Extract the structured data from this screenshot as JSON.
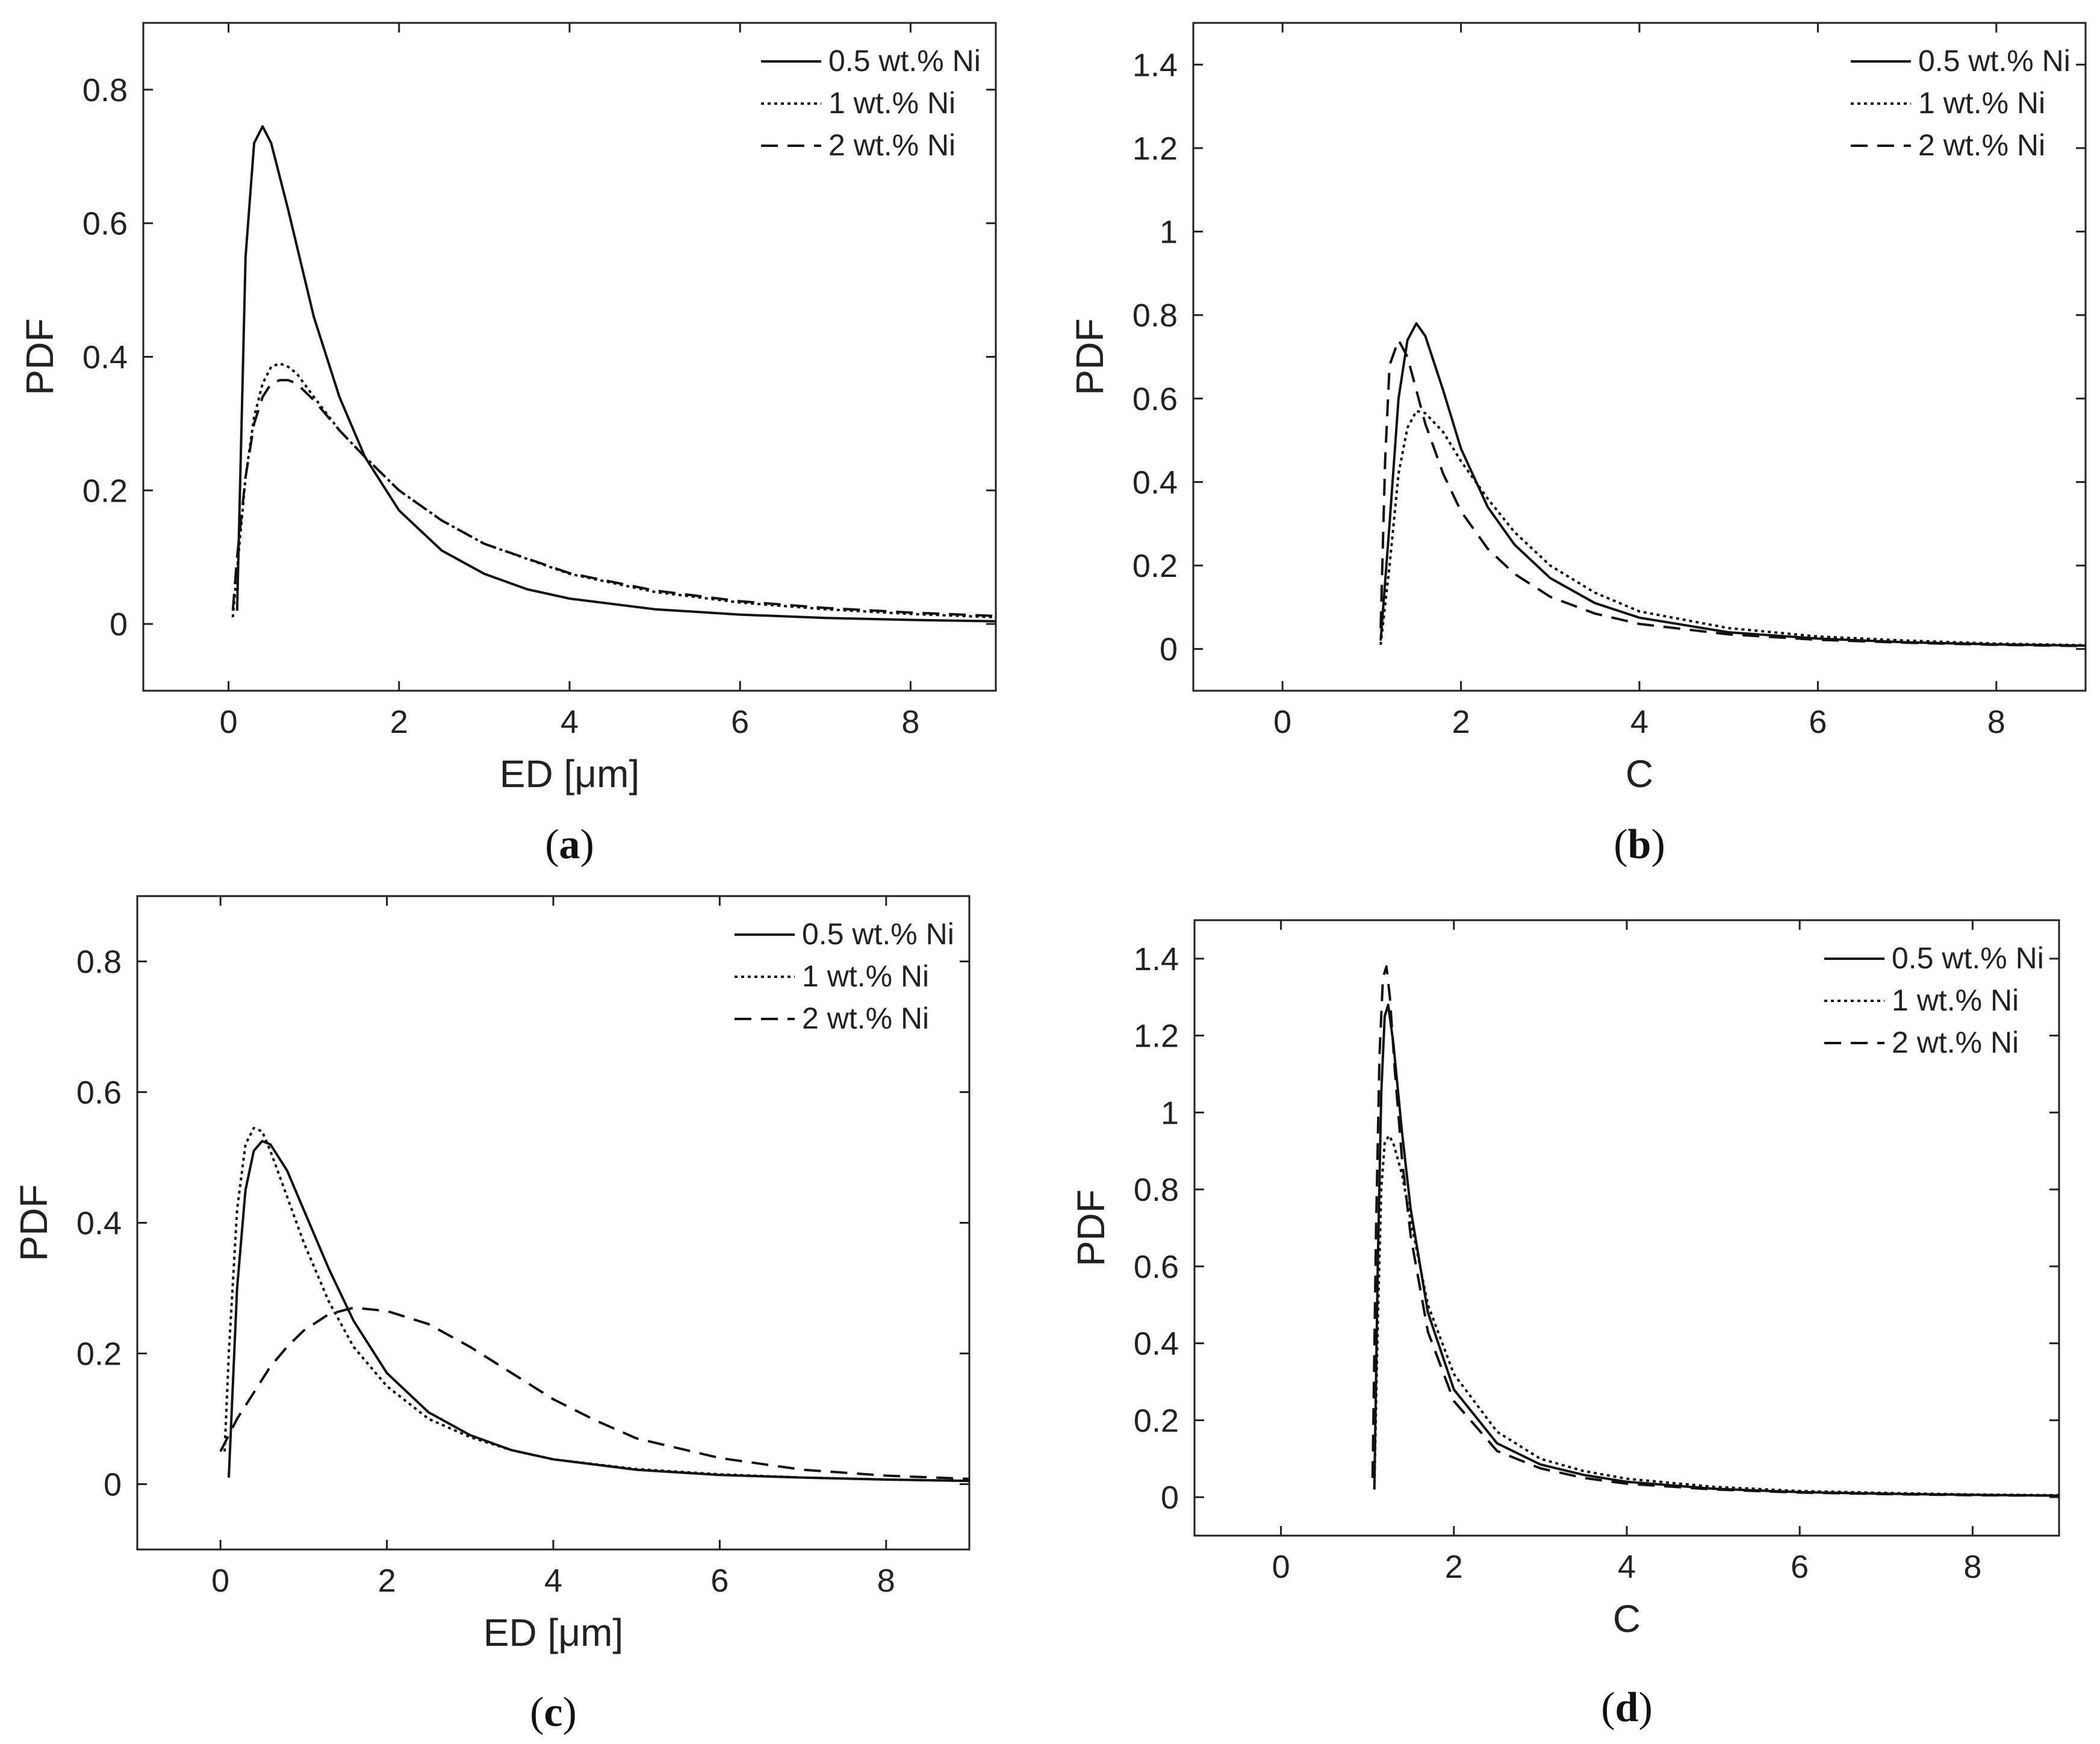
{
  "figure": {
    "panels": [
      {
        "id": "a",
        "caption_letter": "a",
        "caption_open": "(",
        "caption_close": ")"
      },
      {
        "id": "b",
        "caption_letter": "b",
        "caption_open": "(",
        "caption_close": ")"
      },
      {
        "id": "c",
        "caption_letter": "c",
        "caption_open": "(",
        "caption_close": ")"
      },
      {
        "id": "d",
        "caption_letter": "d",
        "caption_open": "(",
        "caption_close": ")"
      }
    ]
  },
  "chart_data": [
    {
      "id": "a",
      "type": "line",
      "title": "",
      "xlabel": "ED [μm]",
      "ylabel": "PDF",
      "xlim": [
        -1,
        9
      ],
      "ylim": [
        -0.1,
        0.9
      ],
      "xticks": [
        0,
        2,
        4,
        6,
        8
      ],
      "yticks": [
        0,
        0.2,
        0.4,
        0.6,
        0.8
      ],
      "legend_position": "top-right",
      "series": [
        {
          "name": "0.5 wt.% Ni",
          "style": "solid",
          "x": [
            0.1,
            0.2,
            0.3,
            0.4,
            0.5,
            0.7,
            1.0,
            1.3,
            1.6,
            2.0,
            2.5,
            3.0,
            3.5,
            4.0,
            5.0,
            6.0,
            7.0,
            8.0,
            9.0
          ],
          "y": [
            0.02,
            0.55,
            0.72,
            0.745,
            0.72,
            0.62,
            0.46,
            0.34,
            0.25,
            0.17,
            0.11,
            0.075,
            0.052,
            0.038,
            0.022,
            0.014,
            0.009,
            0.006,
            0.004
          ]
        },
        {
          "name": "1 wt.% Ni",
          "style": "dotted",
          "x": [
            0.05,
            0.1,
            0.2,
            0.3,
            0.4,
            0.5,
            0.6,
            0.7,
            0.8,
            1.0,
            1.3,
            1.6,
            2.0,
            2.5,
            3.0,
            4.0,
            5.0,
            6.0,
            7.0,
            8.0,
            9.0
          ],
          "y": [
            0.01,
            0.08,
            0.22,
            0.31,
            0.36,
            0.385,
            0.39,
            0.385,
            0.375,
            0.34,
            0.29,
            0.25,
            0.2,
            0.155,
            0.12,
            0.075,
            0.048,
            0.032,
            0.022,
            0.015,
            0.01
          ]
        },
        {
          "name": "2 wt.% Ni",
          "style": "dashed",
          "x": [
            0.05,
            0.1,
            0.2,
            0.3,
            0.4,
            0.5,
            0.6,
            0.7,
            0.8,
            1.0,
            1.3,
            1.6,
            2.0,
            2.5,
            3.0,
            4.0,
            5.0,
            6.0,
            7.0,
            8.0,
            9.0
          ],
          "y": [
            0.02,
            0.1,
            0.22,
            0.3,
            0.34,
            0.36,
            0.365,
            0.365,
            0.36,
            0.335,
            0.29,
            0.25,
            0.2,
            0.155,
            0.12,
            0.076,
            0.05,
            0.034,
            0.024,
            0.017,
            0.012
          ]
        }
      ]
    },
    {
      "id": "b",
      "type": "line",
      "title": "",
      "xlabel": "C",
      "ylabel": "PDF",
      "xlim": [
        -1,
        9
      ],
      "ylim": [
        -0.1,
        1.5
      ],
      "xticks": [
        0,
        2,
        4,
        6,
        8
      ],
      "yticks": [
        0,
        0.2,
        0.4,
        0.6,
        0.8,
        1,
        1.2,
        1.4
      ],
      "legend_position": "top-right",
      "series": [
        {
          "name": "0.5 wt.% Ni",
          "style": "solid",
          "x": [
            1.1,
            1.2,
            1.3,
            1.4,
            1.5,
            1.6,
            1.8,
            2.0,
            2.3,
            2.6,
            3.0,
            3.5,
            4.0,
            5.0,
            6.0,
            7.0,
            8.0,
            9.0
          ],
          "y": [
            0.02,
            0.3,
            0.6,
            0.74,
            0.78,
            0.75,
            0.62,
            0.48,
            0.34,
            0.25,
            0.17,
            0.11,
            0.075,
            0.04,
            0.025,
            0.016,
            0.011,
            0.008
          ]
        },
        {
          "name": "1 wt.% Ni",
          "style": "dotted",
          "x": [
            1.1,
            1.2,
            1.3,
            1.4,
            1.5,
            1.6,
            1.8,
            2.0,
            2.3,
            2.6,
            3.0,
            3.5,
            4.0,
            5.0,
            6.0,
            7.0,
            8.0,
            9.0
          ],
          "y": [
            0.01,
            0.2,
            0.42,
            0.53,
            0.57,
            0.565,
            0.52,
            0.45,
            0.36,
            0.28,
            0.2,
            0.135,
            0.09,
            0.05,
            0.03,
            0.02,
            0.013,
            0.009
          ]
        },
        {
          "name": "2 wt.% Ni",
          "style": "dashed",
          "x": [
            1.1,
            1.15,
            1.2,
            1.3,
            1.4,
            1.5,
            1.6,
            1.8,
            2.0,
            2.3,
            2.6,
            3.0,
            3.5,
            4.0,
            5.0,
            6.0,
            7.0,
            8.0,
            9.0
          ],
          "y": [
            0.05,
            0.45,
            0.68,
            0.74,
            0.7,
            0.62,
            0.54,
            0.42,
            0.33,
            0.24,
            0.18,
            0.125,
            0.085,
            0.06,
            0.035,
            0.022,
            0.015,
            0.01,
            0.007
          ]
        }
      ]
    },
    {
      "id": "c",
      "type": "line",
      "title": "",
      "xlabel": "ED [μm]",
      "ylabel": "PDF",
      "xlim": [
        -1,
        9
      ],
      "ylim": [
        -0.1,
        0.9
      ],
      "xticks": [
        0,
        2,
        4,
        6,
        8
      ],
      "yticks": [
        0,
        0.2,
        0.4,
        0.6,
        0.8
      ],
      "legend_position": "top-right",
      "series": [
        {
          "name": "0.5 wt.% Ni",
          "style": "solid",
          "x": [
            0.1,
            0.2,
            0.3,
            0.4,
            0.5,
            0.6,
            0.8,
            1.0,
            1.3,
            1.6,
            2.0,
            2.5,
            3.0,
            3.5,
            4.0,
            5.0,
            6.0,
            7.0,
            8.0,
            9.0
          ],
          "y": [
            0.01,
            0.3,
            0.45,
            0.51,
            0.525,
            0.52,
            0.48,
            0.42,
            0.33,
            0.25,
            0.17,
            0.11,
            0.075,
            0.052,
            0.038,
            0.022,
            0.014,
            0.01,
            0.007,
            0.005
          ]
        },
        {
          "name": "1 wt.% Ni",
          "style": "dotted",
          "x": [
            0.05,
            0.1,
            0.2,
            0.3,
            0.4,
            0.5,
            0.6,
            0.8,
            1.0,
            1.3,
            1.6,
            2.0,
            2.5,
            3.0,
            3.5,
            4.0,
            5.0,
            6.0,
            7.0,
            8.0,
            9.0
          ],
          "y": [
            0.05,
            0.2,
            0.42,
            0.52,
            0.545,
            0.54,
            0.51,
            0.44,
            0.37,
            0.28,
            0.21,
            0.15,
            0.1,
            0.072,
            0.052,
            0.038,
            0.023,
            0.015,
            0.01,
            0.007,
            0.005
          ]
        },
        {
          "name": "2 wt.% Ni",
          "style": "dashed",
          "x": [
            0.0,
            0.2,
            0.4,
            0.6,
            0.8,
            1.0,
            1.3,
            1.6,
            2.0,
            2.5,
            3.0,
            3.5,
            4.0,
            4.5,
            5.0,
            6.0,
            7.0,
            8.0,
            9.0
          ],
          "y": [
            0.05,
            0.1,
            0.14,
            0.18,
            0.21,
            0.235,
            0.26,
            0.27,
            0.265,
            0.245,
            0.21,
            0.17,
            0.13,
            0.098,
            0.07,
            0.04,
            0.022,
            0.013,
            0.008
          ]
        }
      ]
    },
    {
      "id": "d",
      "type": "line",
      "title": "",
      "xlabel": "C",
      "ylabel": "PDF",
      "xlim": [
        -1,
        9
      ],
      "ylim": [
        -0.1,
        1.5
      ],
      "xticks": [
        0,
        2,
        4,
        6,
        8
      ],
      "yticks": [
        0,
        0.2,
        0.4,
        0.6,
        0.8,
        1,
        1.2,
        1.4
      ],
      "legend_position": "top-right",
      "series": [
        {
          "name": "0.5 wt.% Ni",
          "style": "solid",
          "x": [
            1.08,
            1.12,
            1.16,
            1.2,
            1.24,
            1.3,
            1.4,
            1.5,
            1.7,
            2.0,
            2.5,
            3.0,
            3.5,
            4.0,
            5.0,
            6.0,
            7.0,
            8.0,
            9.0
          ],
          "y": [
            0.02,
            0.6,
            1.05,
            1.25,
            1.28,
            1.18,
            0.95,
            0.75,
            0.48,
            0.28,
            0.14,
            0.085,
            0.058,
            0.04,
            0.022,
            0.013,
            0.009,
            0.006,
            0.004
          ]
        },
        {
          "name": "1 wt.% Ni",
          "style": "dotted",
          "x": [
            1.08,
            1.12,
            1.16,
            1.2,
            1.25,
            1.3,
            1.4,
            1.5,
            1.7,
            2.0,
            2.5,
            3.0,
            3.5,
            4.0,
            5.0,
            6.0,
            7.0,
            8.0,
            9.0
          ],
          "y": [
            0.02,
            0.45,
            0.8,
            0.92,
            0.94,
            0.92,
            0.84,
            0.72,
            0.5,
            0.32,
            0.17,
            0.1,
            0.068,
            0.048,
            0.027,
            0.016,
            0.011,
            0.007,
            0.005
          ]
        },
        {
          "name": "2 wt.% Ni",
          "style": "dashed",
          "x": [
            1.06,
            1.1,
            1.14,
            1.18,
            1.22,
            1.26,
            1.32,
            1.4,
            1.5,
            1.7,
            2.0,
            2.5,
            3.0,
            3.5,
            4.0,
            5.0,
            6.0,
            7.0,
            8.0,
            9.0
          ],
          "y": [
            0.05,
            0.7,
            1.15,
            1.35,
            1.38,
            1.3,
            1.1,
            0.88,
            0.68,
            0.43,
            0.25,
            0.12,
            0.075,
            0.05,
            0.035,
            0.02,
            0.012,
            0.008,
            0.005,
            0.004
          ]
        }
      ]
    }
  ]
}
